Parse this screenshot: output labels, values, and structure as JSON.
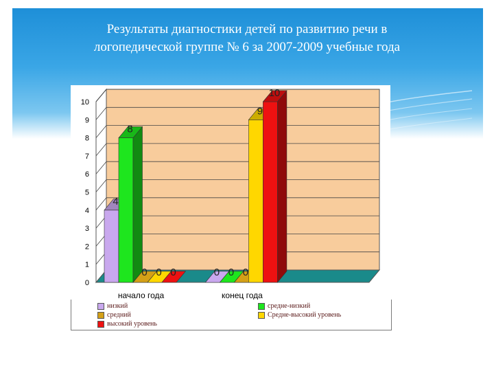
{
  "slide": {
    "title_line1": "Результаты диагностики  детей  по  развитию  речи  в",
    "title_line2": "логопедической  группе № 6   за  2007-2009  учебные  года"
  },
  "chart_data": {
    "type": "bar",
    "categories": [
      "начало  года",
      "конец  года"
    ],
    "series": [
      {
        "name": "низкий",
        "values": [
          4,
          0
        ],
        "color": "#c9a8ee"
      },
      {
        "name": "средне-низкий",
        "values": [
          8,
          0
        ],
        "color": "#1ee61e"
      },
      {
        "name": "средний",
        "values": [
          0,
          0
        ],
        "color": "#d4a017"
      },
      {
        "name": "Средне-высокий уровень",
        "values": [
          0,
          9
        ],
        "color": "#ffd700"
      },
      {
        "name": "высокий уровень",
        "values": [
          0,
          10
        ],
        "color": "#ee1111"
      }
    ],
    "ylim": [
      0,
      10
    ],
    "yticks": [
      "0",
      "1",
      "2",
      "3",
      "4",
      "5",
      "6",
      "7",
      "8",
      "9",
      "10"
    ],
    "data_labels": true,
    "grid": true,
    "legend_position": "bottom",
    "background_color": "#f8cc9c",
    "floor_color": "#1a8a8a"
  }
}
